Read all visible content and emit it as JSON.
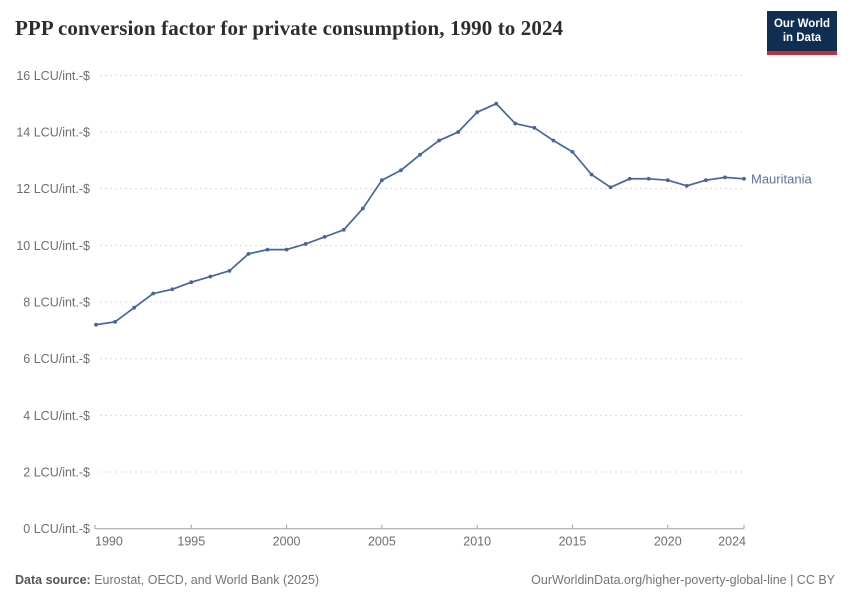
{
  "header": {
    "title": "PPP conversion factor for private consumption, 1990 to 2024",
    "logo": {
      "line1": "Our World",
      "line2": "in Data"
    }
  },
  "chart_data": {
    "type": "line",
    "title": "PPP conversion factor for private consumption, 1990 to 2024",
    "x": [
      1990,
      1991,
      1992,
      1993,
      1994,
      1995,
      1996,
      1997,
      1998,
      1999,
      2000,
      2001,
      2002,
      2003,
      2004,
      2005,
      2006,
      2007,
      2008,
      2009,
      2010,
      2011,
      2012,
      2013,
      2014,
      2015,
      2016,
      2017,
      2018,
      2019,
      2020,
      2021,
      2022,
      2023,
      2024
    ],
    "series": [
      {
        "name": "Mauritania",
        "values": [
          7.2,
          7.3,
          7.8,
          8.3,
          8.45,
          8.7,
          8.9,
          9.1,
          9.7,
          9.85,
          9.85,
          10.05,
          10.3,
          10.55,
          11.3,
          12.3,
          12.65,
          13.2,
          13.7,
          14.0,
          14.7,
          15.0,
          14.3,
          14.15,
          13.7,
          13.3,
          12.5,
          12.05,
          12.35,
          12.35,
          12.3,
          12.1,
          12.3,
          12.4,
          12.35
        ]
      }
    ],
    "xlabel": "",
    "ylabel": "LCU/int.-$",
    "ylim": [
      0,
      16
    ],
    "xlim": [
      1990,
      2024
    ],
    "ytick_values": [
      0,
      2,
      4,
      6,
      8,
      10,
      12,
      14,
      16
    ],
    "ytick_labels": [
      "0 LCU/int.-$",
      "2 LCU/int.-$",
      "4 LCU/int.-$",
      "6 LCU/int.-$",
      "8 LCU/int.-$",
      "10 LCU/int.-$",
      "12 LCU/int.-$",
      "14 LCU/int.-$",
      "16 LCU/int.-$"
    ],
    "xtick_values": [
      1990,
      1995,
      2000,
      2005,
      2010,
      2015,
      2020,
      2024
    ],
    "grid": "horizontal dashed",
    "legend_position": "end-of-line label right of last point"
  },
  "footer": {
    "source_label": "Data source:",
    "source_text": "Eurostat, OECD, and World Bank (2025)",
    "attribution": "OurWorldinData.org/higher-poverty-global-line | CC BY"
  },
  "colors": {
    "line": "#4565a0",
    "entity_label": "#5f71a0",
    "grid": "#dcdcdc",
    "axis": "#a1a1a1",
    "tick_text": "#6e6e6e",
    "title_text": "#2d2d31",
    "footer_text": "#757575",
    "logo_bg": "#0f2e52",
    "logo_bar": "#c0313f"
  }
}
